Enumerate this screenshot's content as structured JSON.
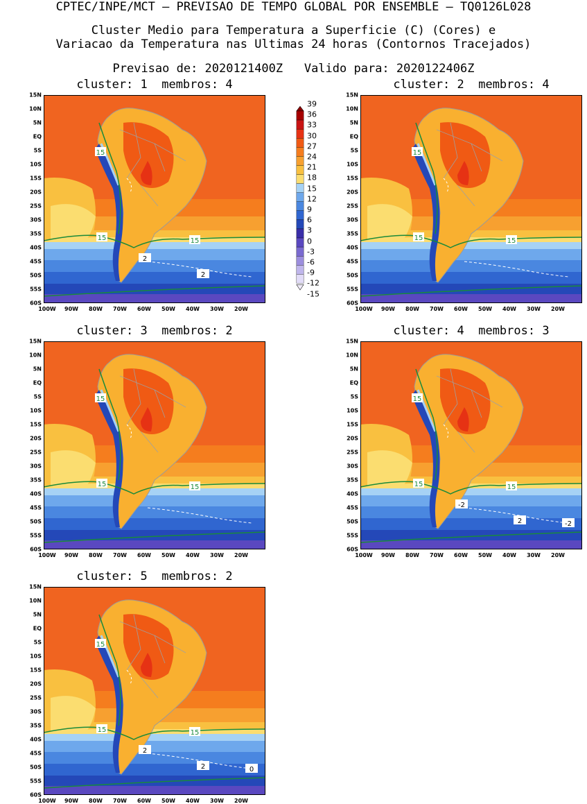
{
  "header": {
    "line1": "CPTEC/INPE/MCT – PREVISAO DE TEMPO GLOBAL POR ENSEMBLE – TQ0126L028",
    "line2": "Cluster Medio para Temperatura a Superficie (C) (Cores) e",
    "line3": "Variacao da Temperatura nas Ultimas 24 horas (Contornos Tracejados)",
    "line4": "Previsao de: 2020121400Z   Valido para: 2020122406Z"
  },
  "lat_labels": [
    "15N",
    "10N",
    "5N",
    "EQ",
    "5S",
    "10S",
    "15S",
    "20S",
    "25S",
    "30S",
    "35S",
    "40S",
    "45S",
    "50S",
    "55S",
    "60S"
  ],
  "lon_labels": [
    "100W",
    "90W",
    "80W",
    "70W",
    "60W",
    "50W",
    "40W",
    "30W",
    "20W"
  ],
  "colorbar": {
    "labels": [
      "39",
      "36",
      "33",
      "30",
      "27",
      "24",
      "21",
      "18",
      "15",
      "12",
      "9",
      "6",
      "3",
      "0",
      "-3",
      "-6",
      "-9",
      "-12",
      "-15"
    ],
    "colors": [
      "#a50000",
      "#c81414",
      "#e63214",
      "#f05a14",
      "#f57d1e",
      "#f7a030",
      "#f9c040",
      "#fbdd70",
      "#a6d2f5",
      "#6ea8ec",
      "#4a87e0",
      "#3066d0",
      "#2448b8",
      "#3a2ea8",
      "#5a48c0",
      "#7a6ad0",
      "#9c8ede",
      "#c0b6ec",
      "#e2dcf8"
    ]
  },
  "clusters": [
    {
      "title": "cluster: 1  membros: 4",
      "labels15": [
        "15",
        "15",
        "15"
      ],
      "dash_labels": [
        "2",
        "2"
      ]
    },
    {
      "title": "cluster: 2  membros: 4",
      "labels15": [
        "15",
        "15",
        "15"
      ],
      "dash_labels": []
    },
    {
      "title": "cluster: 3  membros: 2",
      "labels15": [
        "15",
        "15",
        "15"
      ],
      "dash_labels": []
    },
    {
      "title": "cluster: 4  membros: 3",
      "labels15": [
        "15",
        "15",
        "15"
      ],
      "dash_labels": [
        "-2",
        "2",
        "-2"
      ]
    },
    {
      "title": "cluster: 5  membros: 2",
      "labels15": [
        "15",
        "15",
        "15"
      ],
      "dash_labels": [
        "2",
        "2",
        "0"
      ]
    }
  ]
}
